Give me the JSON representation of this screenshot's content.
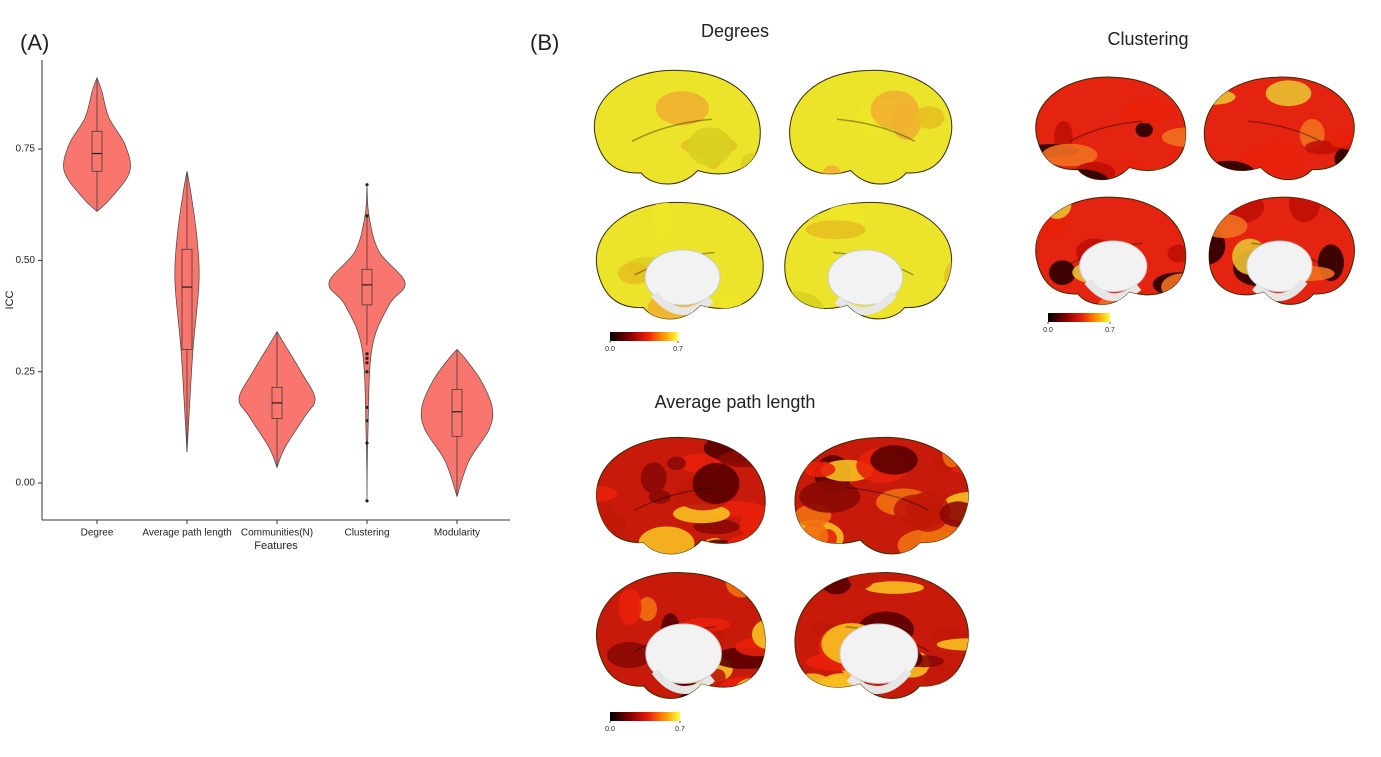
{
  "chart_data": [
    {
      "type": "violin",
      "panel": "(A)",
      "ylabel": "ICC",
      "xlabel": "Features",
      "categories": [
        "Degree",
        "Average path length",
        "Communities(N)",
        "Clustering",
        "Modularity"
      ],
      "color": "#f8766d",
      "ylim": [
        -0.083,
        0.95
      ],
      "yticks": [
        {
          "value": 0,
          "label": "0.00"
        },
        {
          "value": 0.25,
          "label": "0.25"
        },
        {
          "value": 0.5,
          "label": "0.50"
        },
        {
          "value": 0.75,
          "label": "0.75"
        }
      ],
      "violins": [
        {
          "min": 0.61,
          "q1": 0.7,
          "median": 0.74,
          "q3": 0.79,
          "max": 0.91,
          "outliers": [],
          "density_y": [
            0.61,
            0.64,
            0.7,
            0.76,
            0.82,
            0.88,
            0.91
          ],
          "density": [
            0,
            0.35,
            0.82,
            0.7,
            0.3,
            0.12,
            0
          ]
        },
        {
          "min": 0.07,
          "q1": 0.3,
          "median": 0.44,
          "q3": 0.525,
          "max": 0.7,
          "outliers": [],
          "density_y": [
            0.07,
            0.15,
            0.3,
            0.45,
            0.55,
            0.65,
            0.7
          ],
          "density": [
            0,
            0.05,
            0.15,
            0.3,
            0.25,
            0.1,
            0
          ]
        },
        {
          "min": 0.035,
          "q1": 0.145,
          "median": 0.18,
          "q3": 0.215,
          "max": 0.34,
          "outliers": [],
          "density_y": [
            0.035,
            0.08,
            0.15,
            0.19,
            0.25,
            0.31,
            0.34
          ],
          "density": [
            0,
            0.2,
            0.7,
            0.95,
            0.6,
            0.2,
            0
          ]
        },
        {
          "min": 0.31,
          "q1": 0.4,
          "median": 0.445,
          "q3": 0.48,
          "max": 0.6,
          "outliers": [
            0.67,
            0.6,
            0.29,
            0.28,
            0.27,
            0.25,
            0.17,
            0.14,
            0.09,
            -0.04
          ],
          "density_y": [
            -0.04,
            0.1,
            0.3,
            0.4,
            0.45,
            0.52,
            0.6,
            0.67
          ],
          "density": [
            0,
            0.02,
            0.12,
            0.55,
            0.95,
            0.3,
            0.05,
            0
          ]
        },
        {
          "min": -0.03,
          "q1": 0.105,
          "median": 0.16,
          "q3": 0.21,
          "max": 0.3,
          "outliers": [],
          "density_y": [
            -0.03,
            0.05,
            0.12,
            0.17,
            0.23,
            0.28,
            0.3
          ],
          "density": [
            0,
            0.3,
            0.8,
            0.88,
            0.6,
            0.2,
            0
          ]
        }
      ]
    }
  ],
  "panel_b": {
    "label": "(B)",
    "maps": [
      {
        "title": "Degrees",
        "colorbar_ticks": [
          {
            "value": 0,
            "label": "0.0"
          },
          {
            "value": 0.7,
            "label": "0.7"
          }
        ]
      },
      {
        "title": "Clustering",
        "colorbar_ticks": [
          {
            "value": 0,
            "label": "0.0"
          },
          {
            "value": 0.7,
            "label": "0.7"
          }
        ]
      },
      {
        "title": "Average path length",
        "colorbar_ticks": [
          {
            "value": 0,
            "label": "0.0"
          },
          {
            "value": 0.7,
            "label": "0.7"
          }
        ]
      }
    ]
  }
}
